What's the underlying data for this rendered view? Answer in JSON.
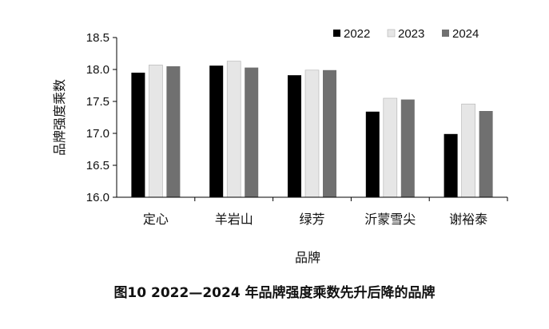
{
  "caption": "图10 2022—2024 年品牌强度乘数先升后降的品牌",
  "colors": {
    "2022": "#000000",
    "2023": "#e6e6e6",
    "2024": "#707070",
    "axis": "#000000"
  },
  "chart_data": {
    "type": "bar",
    "xlabel": "品牌",
    "ylabel": "品牌强度乘数",
    "ylim": [
      16.0,
      18.5
    ],
    "yticks": [
      "16.0",
      "16.5",
      "17.0",
      "17.5",
      "18.0",
      "18.5"
    ],
    "categories": [
      "定心",
      "羊岩山",
      "绿芳",
      "沂蒙雪尖",
      "谢裕泰"
    ],
    "series": [
      {
        "name": "2022",
        "values": [
          17.95,
          18.06,
          17.91,
          17.34,
          16.99
        ]
      },
      {
        "name": "2023",
        "values": [
          18.07,
          18.13,
          17.99,
          17.55,
          17.46
        ]
      },
      {
        "name": "2024",
        "values": [
          18.05,
          18.03,
          17.99,
          17.53,
          17.35
        ]
      }
    ],
    "legend": "top-right",
    "grid": false
  }
}
